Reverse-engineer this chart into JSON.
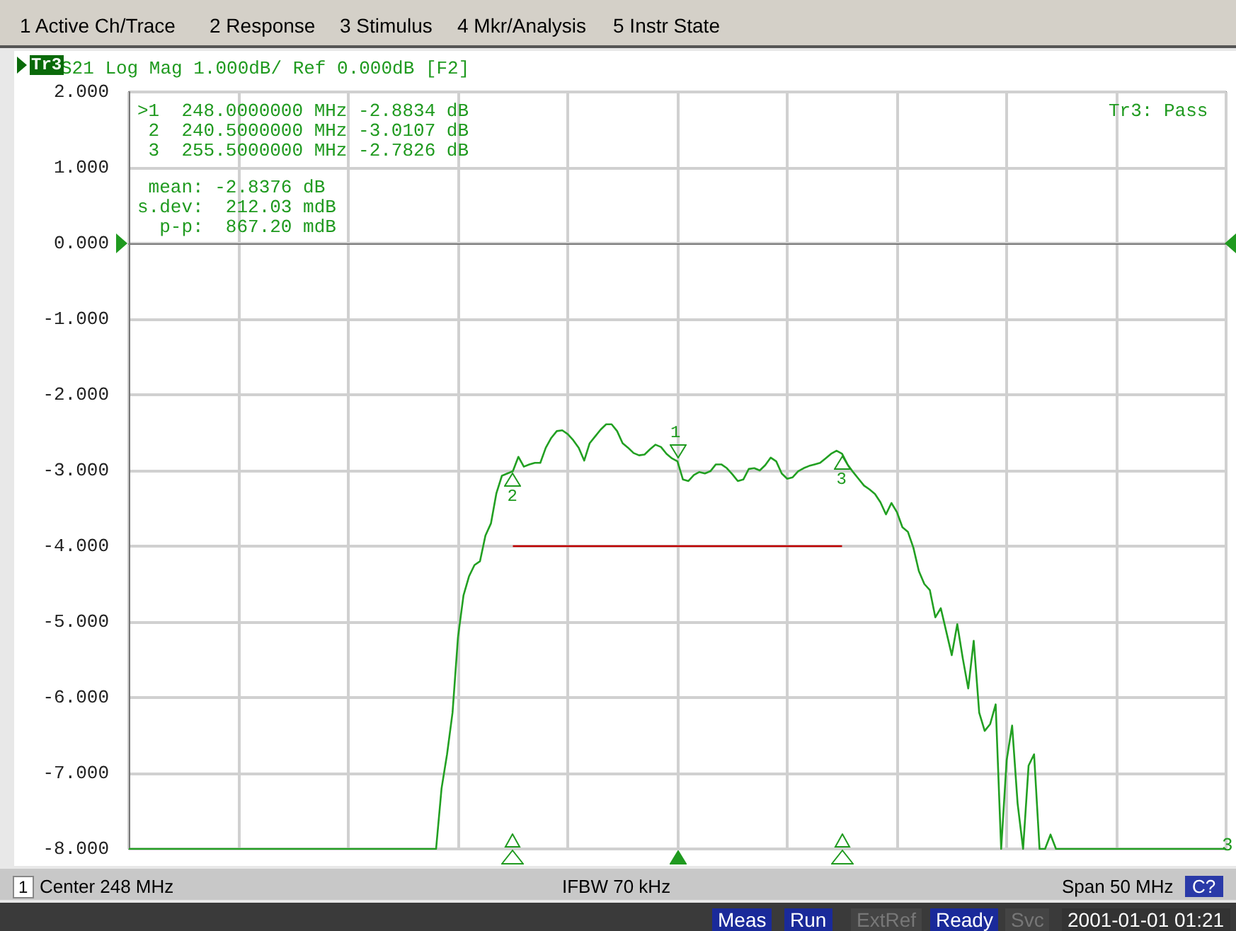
{
  "chart_data": {
    "type": "line",
    "title": "S21 Log Mag 1.000dB/ Ref 0.000dB [F2]",
    "categories": [
      null,
      null,
      null,
      null,
      null,
      null,
      null,
      null,
      null,
      null,
      null,
      null,
      null,
      null,
      null,
      null,
      null,
      null,
      null,
      null,
      null,
      null,
      null,
      null,
      null,
      null,
      null,
      null,
      null,
      null,
      null,
      null,
      null,
      null,
      null,
      null,
      null,
      null,
      null,
      null,
      null,
      null,
      null,
      null,
      null,
      null,
      null,
      null,
      null,
      null,
      null,
      null,
      null,
      null,
      null,
      null,
      null,
      null,
      null,
      null,
      null,
      null,
      null,
      null,
      null,
      null,
      null,
      null,
      null,
      null,
      null,
      null,
      null,
      null,
      null,
      null,
      null,
      null,
      null,
      null,
      null,
      null,
      null,
      null,
      null,
      null,
      null,
      null,
      null,
      null,
      null,
      null,
      null,
      null,
      null,
      null,
      null,
      null,
      null,
      null,
      null,
      null,
      null,
      null,
      null,
      null,
      null,
      null,
      null,
      null,
      null,
      null,
      null,
      null,
      null,
      null,
      null,
      null,
      null,
      null,
      null,
      null,
      null,
      null,
      null,
      null,
      null,
      null,
      null,
      null,
      null,
      null,
      null,
      null,
      null,
      null,
      null,
      null,
      null,
      null,
      null,
      null,
      null,
      null,
      null,
      null,
      null,
      null,
      null,
      null,
      null,
      null,
      null,
      null,
      null,
      null,
      null,
      null,
      null,
      null,
      null,
      null,
      null,
      null,
      null,
      null,
      null,
      null,
      null,
      null,
      null,
      null,
      null,
      null,
      null,
      null,
      null,
      null,
      null,
      null,
      null,
      null,
      null,
      null,
      null,
      null,
      null,
      null,
      null,
      null,
      null,
      null,
      null,
      null,
      null,
      null,
      null,
      null,
      null,
      null,
      null
    ],
    "ylim": [
      -8,
      2
    ],
    "yticks": [
      {
        "value": 2,
        "label": "2.000"
      },
      {
        "value": 1,
        "label": "1.000"
      },
      {
        "value": 0,
        "label": "0.000"
      },
      {
        "value": -1,
        "label": "-1.000"
      },
      {
        "value": -2,
        "label": "-2.000"
      },
      {
        "value": -3,
        "label": "-3.000"
      },
      {
        "value": -4,
        "label": "-4.000"
      },
      {
        "value": -5,
        "label": "-5.000"
      },
      {
        "value": -6,
        "label": "-6.000"
      },
      {
        "value": -7,
        "label": "-7.000"
      },
      {
        "value": -8,
        "label": "-8.000"
      }
    ],
    "grid": true,
    "tick_labels": "y",
    "series": [
      {
        "color": "#22a022",
        "values": [
          -8,
          -8,
          -8,
          -8,
          -8,
          -8,
          -8,
          -8,
          -8,
          -8,
          -8,
          -8,
          -8,
          -8,
          -8,
          -8,
          -8,
          -8,
          -8,
          -8,
          -8,
          -8,
          -8,
          -8,
          -8,
          -8,
          -8,
          -8,
          -8,
          -8,
          -8,
          -8,
          -8,
          -8,
          -8,
          -8,
          -8,
          -8,
          -8,
          -8,
          -8,
          -8,
          -8,
          -8,
          -8,
          -8,
          -8,
          -8,
          -8,
          -8,
          -8,
          -8,
          -8,
          -8,
          -8,
          -8,
          -8,
          -7.2,
          -6.75,
          -6.2,
          -5.2,
          -4.65,
          -4.4,
          -4.25,
          -4.2,
          -3.86,
          -3.7,
          -3.3,
          -3.07,
          -3.04,
          -3.01,
          -2.82,
          -2.95,
          -2.92,
          -2.9,
          -2.9,
          -2.7,
          -2.57,
          -2.48,
          -2.47,
          -2.52,
          -2.6,
          -2.7,
          -2.87,
          -2.64,
          -2.55,
          -2.46,
          -2.39,
          -2.39,
          -2.48,
          -2.64,
          -2.7,
          -2.77,
          -2.8,
          -2.79,
          -2.72,
          -2.66,
          -2.69,
          -2.78,
          -2.84,
          -2.88,
          -3.12,
          -3.14,
          -3.06,
          -3.02,
          -3.04,
          -3.01,
          -2.92,
          -2.92,
          -2.97,
          -3.05,
          -3.14,
          -3.12,
          -2.98,
          -2.97,
          -3.0,
          -2.93,
          -2.83,
          -2.88,
          -3.04,
          -3.11,
          -3.09,
          -3.01,
          -2.97,
          -2.94,
          -2.92,
          -2.9,
          -2.84,
          -2.78,
          -2.74,
          -2.78,
          -2.92,
          -3.02,
          -3.11,
          -3.2,
          -3.25,
          -3.31,
          -3.42,
          -3.58,
          -3.43,
          -3.55,
          -3.75,
          -3.81,
          -4.02,
          -4.33,
          -4.5,
          -4.58,
          -4.94,
          -4.82,
          -5.13,
          -5.44,
          -5.03,
          -5.48,
          -5.88,
          -5.25,
          -6.2,
          -6.44,
          -6.35,
          -6.09,
          -8,
          -6.83,
          -6.37,
          -7.4,
          -8,
          -6.9,
          -6.75,
          -8,
          -8,
          -7.81,
          -8,
          -8,
          -8,
          -8,
          -8,
          -8,
          -8,
          -8,
          -8,
          -8,
          -8,
          -8,
          -8,
          -8,
          -8,
          -8,
          -8,
          -8,
          -8,
          -8,
          -8,
          -8,
          -8,
          -8,
          -8,
          -8,
          -8,
          -8,
          -8,
          -8,
          -8,
          -8
        ]
      },
      {
        "color": "#c00000",
        "values": [
          null,
          null,
          null,
          null,
          null,
          null,
          null,
          null,
          null,
          null,
          null,
          null,
          null,
          null,
          null,
          null,
          null,
          null,
          null,
          null,
          null,
          null,
          null,
          null,
          null,
          null,
          null,
          null,
          null,
          null,
          null,
          null,
          null,
          null,
          null,
          null,
          null,
          null,
          null,
          null,
          null,
          null,
          null,
          null,
          null,
          null,
          null,
          null,
          null,
          null,
          null,
          null,
          null,
          null,
          null,
          null,
          null,
          null,
          null,
          null,
          null,
          null,
          null,
          null,
          null,
          null,
          null,
          null,
          null,
          null,
          -4,
          -4,
          -4,
          -4,
          -4,
          -4,
          -4,
          -4,
          -4,
          -4,
          -4,
          -4,
          -4,
          -4,
          -4,
          -4,
          -4,
          -4,
          -4,
          -4,
          -4,
          -4,
          -4,
          -4,
          -4,
          -4,
          -4,
          -4,
          -4,
          -4,
          -4,
          -4,
          -4,
          -4,
          -4,
          -4,
          -4,
          -4,
          -4,
          -4,
          -4,
          -4,
          -4,
          -4,
          -4,
          -4,
          -4,
          -4,
          -4,
          -4,
          -4,
          -4,
          -4,
          -4,
          -4,
          -4,
          -4,
          -4,
          -4,
          -4,
          -4,
          null,
          null,
          null,
          null,
          null,
          null,
          null,
          null,
          null,
          null,
          null,
          null,
          null,
          null,
          null,
          null,
          null,
          null,
          null,
          null,
          null,
          null,
          null,
          null,
          null,
          null,
          null,
          null,
          null,
          null,
          null,
          null,
          null,
          null,
          null,
          null,
          null,
          null,
          null,
          null,
          null,
          null,
          null,
          null,
          null,
          null,
          null,
          null,
          null,
          null,
          null,
          null,
          null,
          null,
          null,
          null,
          null,
          null,
          null,
          null,
          null,
          null,
          null,
          null,
          null,
          null,
          null,
          null,
          null,
          null
        ]
      }
    ],
    "annotations": [
      "1 Active Ch/Trace",
      "2 Response",
      "3 Stimulus",
      "4 Mkr/Analysis",
      "5 Instr State",
      "Tr3",
      ">1  248.0000000 MHz -2.8834 dB",
      " 2  240.5000000 MHz -3.0107 dB",
      " 3  255.5000000 MHz -2.7826 dB",
      " mean: -2.8376 dB",
      "s.dev:  212.03 mdB",
      "  p-p:  867.20 mdB",
      "Tr3: Pass",
      "1",
      "Center 248 MHz",
      "IFBW 70 kHz",
      "Span 50 MHz",
      "C?",
      "Meas",
      "Run",
      "ExtRef",
      "Ready",
      "Svc",
      "2001-01-01 01:21",
      "3",
      {
        "text": "1",
        "y": -2.8834
      },
      {
        "text": "2",
        "y": -3.0107
      },
      {
        "text": "3",
        "y": -2.7826
      }
    ]
  }
}
